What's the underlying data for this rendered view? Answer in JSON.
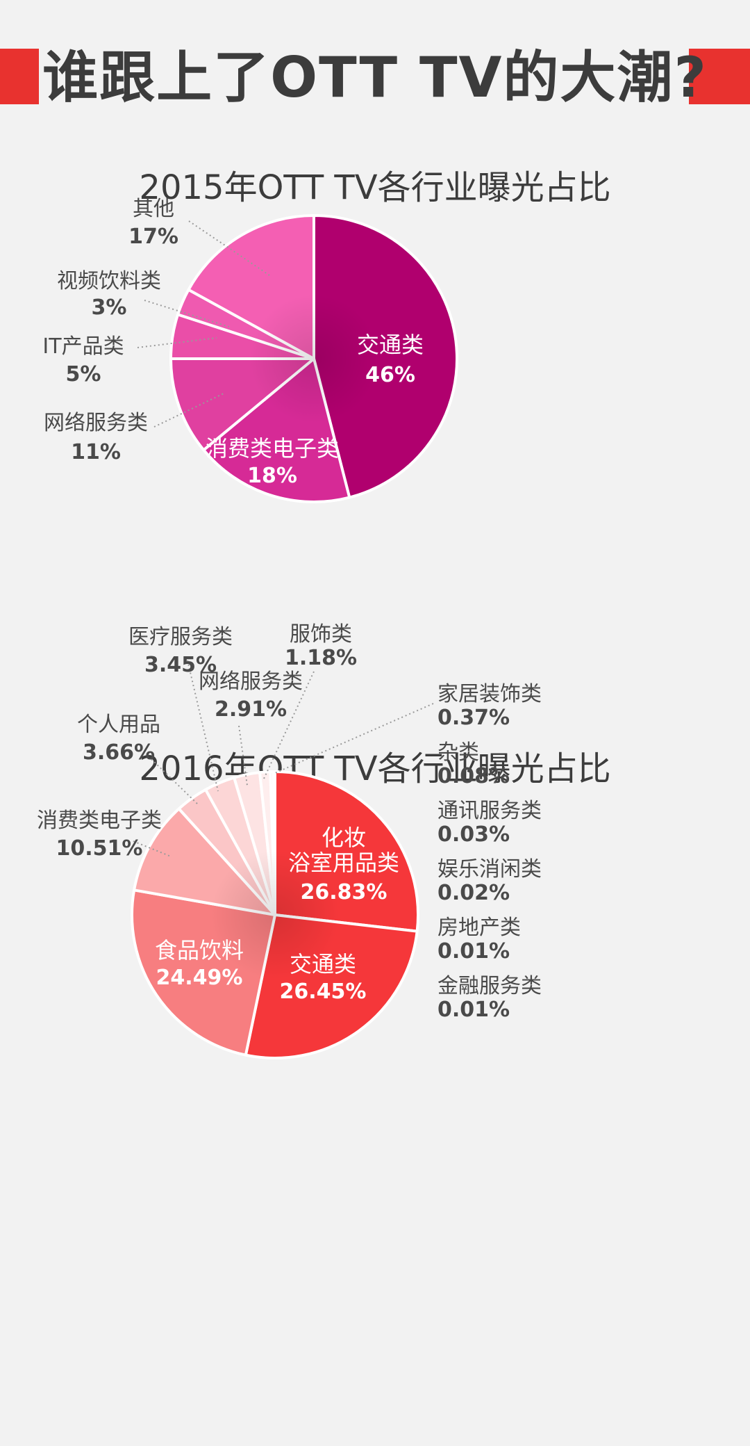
{
  "main_title": "谁跟上了OTT TV的大潮?",
  "chart_data": [
    {
      "type": "pie",
      "title": "2015年OTT TV各行业曝光占比",
      "unit": "%",
      "slices": [
        {
          "label": "交通类",
          "value": 46,
          "display": "46%"
        },
        {
          "label": "消费类电子类",
          "value": 18,
          "display": "18%"
        },
        {
          "label": "网络服务类",
          "value": 11,
          "display": "11%"
        },
        {
          "label": "IT产品类",
          "value": 5,
          "display": "5%"
        },
        {
          "label": "视频饮料类",
          "value": 3,
          "display": "3%"
        },
        {
          "label": "其他",
          "value": 17,
          "display": "17%"
        }
      ],
      "colors": [
        "#b0006e",
        "#d62a96",
        "#e040a0",
        "#ea4ea8",
        "#ef5ab0",
        "#f45fb3"
      ]
    },
    {
      "type": "pie",
      "title": "2016年OTT TV各行业曝光占比",
      "unit": "%",
      "slices": [
        {
          "label": "化妆浴室用品类",
          "label_lines": [
            "化妆",
            "浴室用品类"
          ],
          "value": 26.83,
          "display": "26.83%"
        },
        {
          "label": "交通类",
          "value": 26.45,
          "display": "26.45%"
        },
        {
          "label": "食品饮料",
          "value": 24.49,
          "display": "24.49%"
        },
        {
          "label": "消费类电子类",
          "value": 10.51,
          "display": "10.51%"
        },
        {
          "label": "个人用品",
          "value": 3.66,
          "display": "3.66%"
        },
        {
          "label": "医疗服务类",
          "value": 3.45,
          "display": "3.45%"
        },
        {
          "label": "网络服务类",
          "value": 2.91,
          "display": "2.91%"
        },
        {
          "label": "服饰类",
          "value": 1.18,
          "display": "1.18%"
        },
        {
          "label": "家居装饰类",
          "value": 0.37,
          "display": "0.37%"
        },
        {
          "label": "杂类",
          "value": 0.08,
          "display": "0.08%"
        },
        {
          "label": "通讯服务类",
          "value": 0.03,
          "display": "0.03%"
        },
        {
          "label": "娱乐消闲类",
          "value": 0.02,
          "display": "0.02%"
        },
        {
          "label": "房地产类",
          "value": 0.01,
          "display": "0.01%"
        },
        {
          "label": "金融服务类",
          "value": 0.01,
          "display": "0.01%"
        }
      ],
      "colors": [
        "#f5373a",
        "#f5373a",
        "#f77e80",
        "#fba9aa",
        "#fbc6c7",
        "#fcd6d6",
        "#fde3e3",
        "#feeeee",
        "#fef2f2",
        "#fef2f2",
        "#fef2f2",
        "#fef2f2",
        "#fef2f2",
        "#fef2f2"
      ]
    }
  ]
}
